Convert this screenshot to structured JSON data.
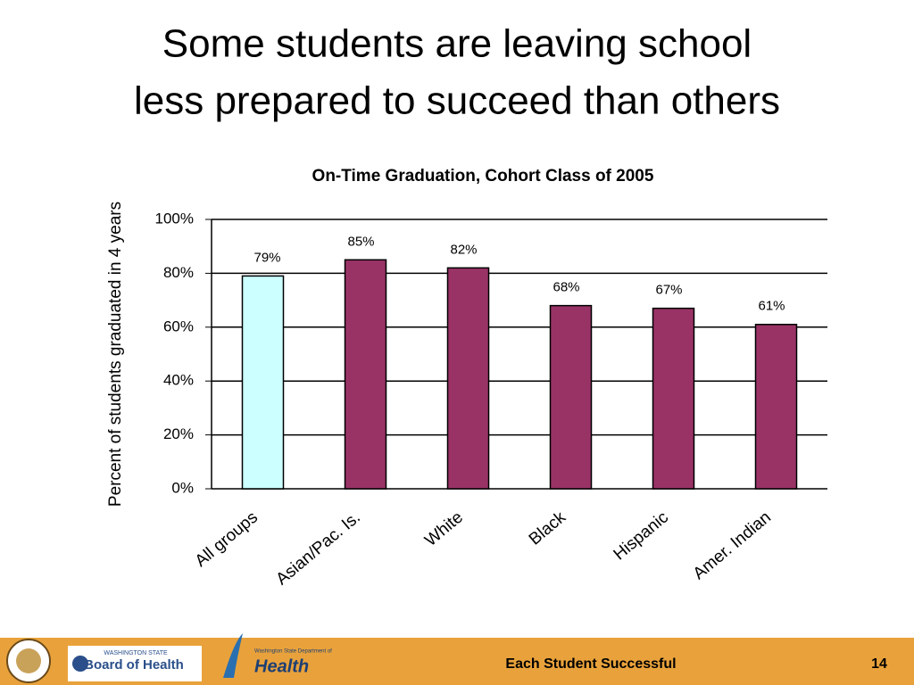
{
  "slide": {
    "title": [
      "Some students are leaving school",
      "less prepared to succeed than others"
    ],
    "footer": "Each Student Successful",
    "page_number": 14,
    "logos": [
      "WASHINGTON STATE",
      "Board of Health",
      "Washington State Department of",
      "Health"
    ]
  },
  "chart_data": {
    "type": "bar",
    "title": "On-Time Graduation, Cohort Class of 2005",
    "y_label": "Percent of students graduated in 4 years",
    "categories": [
      "All groups",
      "Asian/Pac. Is.",
      "White",
      "Black",
      "Hispanic",
      "Amer. Indian"
    ],
    "values": [
      79,
      85,
      82,
      68,
      67,
      61
    ],
    "value_labels": [
      "79%",
      "85%",
      "82%",
      "68%",
      "67%",
      "61%"
    ],
    "colors": [
      "#ccffff",
      "#993366",
      "#993366",
      "#993366",
      "#993366",
      "#993366"
    ],
    "ylim": [
      0,
      100
    ],
    "yticks": [
      {
        "value": 0,
        "label": "0%"
      },
      {
        "value": 20,
        "label": "20%"
      },
      {
        "value": 40,
        "label": "40%"
      },
      {
        "value": 60,
        "label": "60%"
      },
      {
        "value": 80,
        "label": "80%"
      },
      {
        "value": 100,
        "label": "100%"
      }
    ],
    "grid": true
  }
}
